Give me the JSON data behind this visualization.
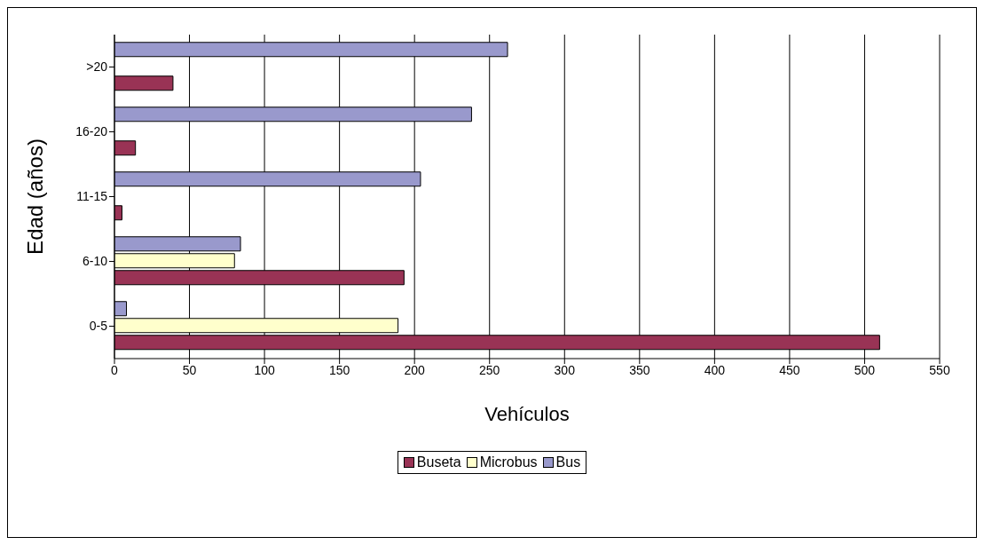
{
  "chart_data": {
    "type": "bar",
    "orientation": "horizontal",
    "xlabel": "Vehículos",
    "ylabel": "Edad (años)",
    "categories": [
      ">20",
      "16-20",
      "11-15",
      "6-10",
      "0-5"
    ],
    "series": [
      {
        "name": "Buseta",
        "color": "#993355",
        "values": [
          39,
          14,
          5,
          193,
          510
        ]
      },
      {
        "name": "Microbus",
        "color": "#ffffcc",
        "values": [
          null,
          null,
          null,
          80,
          189
        ]
      },
      {
        "name": "Bus",
        "color": "#9999cc",
        "values": [
          262,
          238,
          204,
          84,
          8
        ]
      }
    ],
    "xlim": [
      0,
      550
    ],
    "xticks": [
      0,
      50,
      100,
      150,
      200,
      250,
      300,
      350,
      400,
      450,
      500,
      550
    ],
    "grid": "x",
    "legend": "bottom"
  }
}
